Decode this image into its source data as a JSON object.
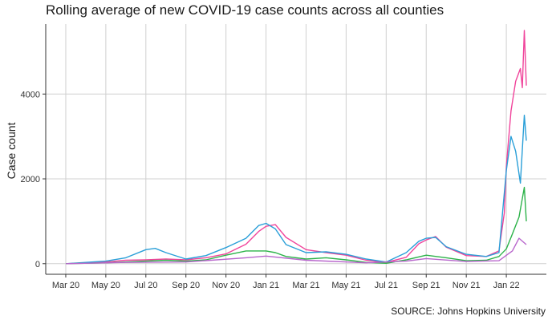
{
  "chart_data": {
    "type": "line",
    "title": "Rolling average of new COVID-19 case counts across all counties",
    "ylabel": "Case count",
    "xlabel": "",
    "caption": "SOURCE: Johns Hopkins University",
    "x_ticks": [
      "Mar 20",
      "May 20",
      "Jul 20",
      "Sep 20",
      "Nov 20",
      "Jan 21",
      "Mar 21",
      "May 21",
      "Jul 21",
      "Sep 21",
      "Nov 21",
      "Jan 22"
    ],
    "y_ticks": [
      0,
      2000,
      4000
    ],
    "xlim": [
      "2020-02-01",
      "2022-03-01"
    ],
    "ylim": [
      -250,
      5650
    ],
    "grid": true,
    "legend": "none",
    "colors": {
      "pink": "#F0449B",
      "blue": "#2A9FD8",
      "green": "#2DB34A",
      "purple": "#B866CC"
    },
    "series": [
      {
        "color": "#F0449B",
        "x": [
          "2020-03-01",
          "2020-04-01",
          "2020-05-01",
          "2020-06-01",
          "2020-07-01",
          "2020-08-01",
          "2020-09-01",
          "2020-10-01",
          "2020-11-01",
          "2020-12-01",
          "2020-12-20",
          "2021-01-01",
          "2021-01-15",
          "2021-02-01",
          "2021-03-01",
          "2021-04-01",
          "2021-05-01",
          "2021-06-01",
          "2021-07-01",
          "2021-08-01",
          "2021-08-20",
          "2021-09-01",
          "2021-09-15",
          "2021-10-01",
          "2021-11-01",
          "2021-12-01",
          "2021-12-20",
          "2021-12-28",
          "2022-01-01",
          "2022-01-08",
          "2022-01-15",
          "2022-01-22",
          "2022-01-25",
          "2022-01-28",
          "2022-02-01"
        ],
        "y": [
          0,
          20,
          40,
          80,
          90,
          110,
          90,
          140,
          230,
          460,
          760,
          880,
          920,
          620,
          330,
          260,
          200,
          80,
          30,
          150,
          470,
          560,
          640,
          390,
          190,
          170,
          300,
          1200,
          2300,
          3600,
          4300,
          4600,
          4150,
          5500,
          4200
        ]
      },
      {
        "color": "#2A9FD8",
        "x": [
          "2020-03-01",
          "2020-04-01",
          "2020-05-01",
          "2020-06-01",
          "2020-07-01",
          "2020-07-15",
          "2020-08-01",
          "2020-09-01",
          "2020-10-01",
          "2020-11-01",
          "2020-12-01",
          "2020-12-20",
          "2021-01-01",
          "2021-01-15",
          "2021-02-01",
          "2021-03-01",
          "2021-04-01",
          "2021-05-01",
          "2021-06-01",
          "2021-07-01",
          "2021-08-01",
          "2021-08-20",
          "2021-09-01",
          "2021-09-15",
          "2021-10-01",
          "2021-11-01",
          "2021-12-01",
          "2021-12-20",
          "2022-01-01",
          "2022-01-08",
          "2022-01-15",
          "2022-01-22",
          "2022-01-28",
          "2022-02-01"
        ],
        "y": [
          0,
          30,
          60,
          140,
          330,
          360,
          260,
          110,
          190,
          380,
          600,
          900,
          950,
          820,
          450,
          260,
          280,
          220,
          110,
          40,
          260,
          530,
          600,
          620,
          400,
          220,
          170,
          260,
          2200,
          3000,
          2650,
          1900,
          3500,
          2900
        ]
      },
      {
        "color": "#2DB34A",
        "x": [
          "2020-03-01",
          "2020-05-01",
          "2020-07-01",
          "2020-08-01",
          "2020-09-01",
          "2020-10-01",
          "2020-11-01",
          "2020-12-01",
          "2021-01-01",
          "2021-01-15",
          "2021-02-01",
          "2021-03-01",
          "2021-04-01",
          "2021-05-01",
          "2021-06-01",
          "2021-07-01",
          "2021-08-01",
          "2021-09-01",
          "2021-10-01",
          "2021-11-01",
          "2021-12-01",
          "2021-12-20",
          "2022-01-01",
          "2022-01-10",
          "2022-01-20",
          "2022-01-28",
          "2022-02-01"
        ],
        "y": [
          0,
          20,
          60,
          80,
          60,
          90,
          200,
          300,
          300,
          260,
          170,
          110,
          140,
          90,
          30,
          10,
          90,
          200,
          140,
          70,
          80,
          170,
          350,
          700,
          1100,
          1800,
          1000
        ]
      },
      {
        "color": "#B866CC",
        "x": [
          "2020-03-01",
          "2020-06-01",
          "2020-09-01",
          "2020-12-01",
          "2021-01-01",
          "2021-03-01",
          "2021-06-01",
          "2021-08-01",
          "2021-09-01",
          "2021-11-01",
          "2021-12-20",
          "2022-01-10",
          "2022-01-20",
          "2022-02-01"
        ],
        "y": [
          0,
          30,
          40,
          140,
          180,
          80,
          20,
          60,
          120,
          50,
          70,
          300,
          600,
          450
        ]
      }
    ]
  }
}
